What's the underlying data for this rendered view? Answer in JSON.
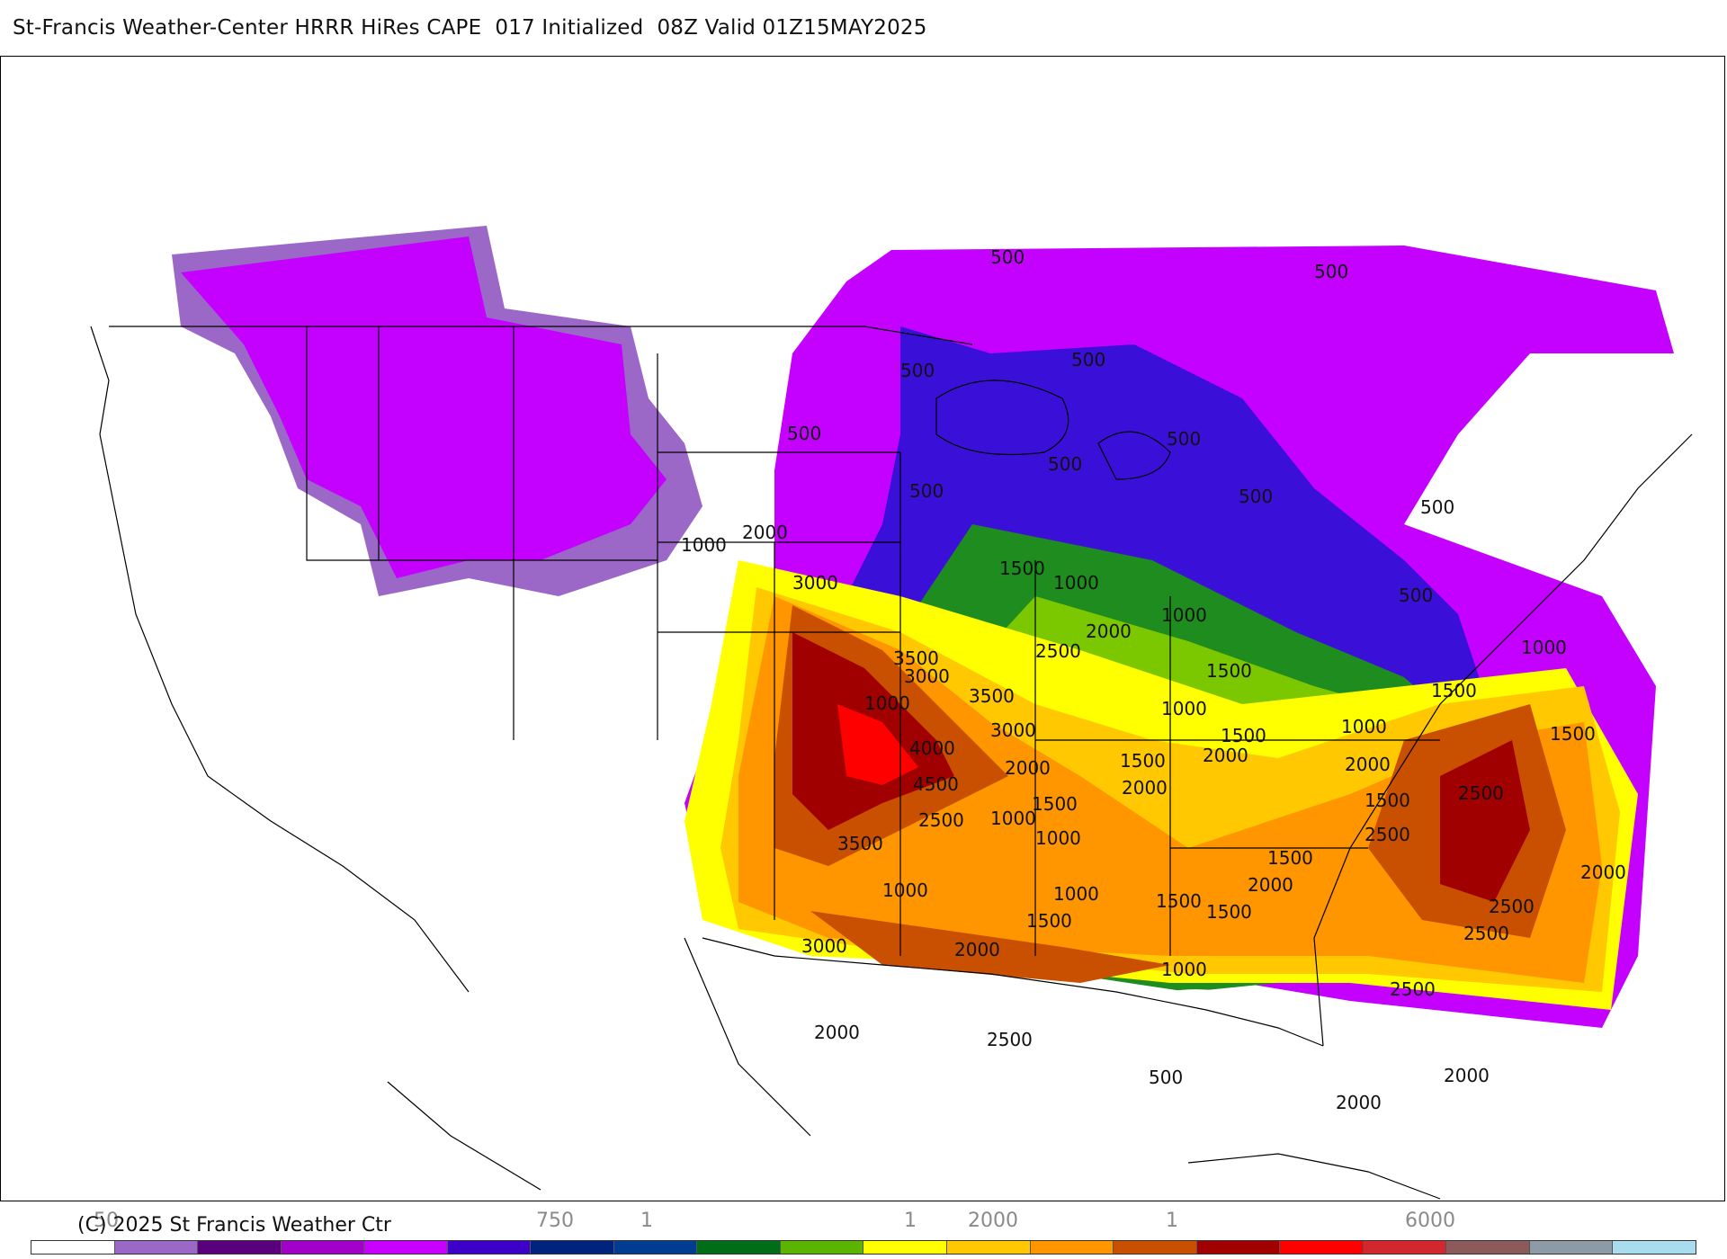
{
  "header": {
    "title": "St-Francis Weather-Center HRRR HiRes CAPE  017 Initialized  08Z Valid 01Z15MAY2025"
  },
  "footer": {
    "copyright": "(C) 2025 St Francis Weather Ctr"
  },
  "legend": {
    "tick_labels": [
      "50",
      "750",
      "1",
      "1",
      "2000",
      "1",
      "6000"
    ],
    "colors": [
      "#ffffff",
      "#9b68c8",
      "#5a007d",
      "#a000c8",
      "#c800ff",
      "#3c00c8",
      "#00237d",
      "#003c91",
      "#006e19",
      "#5ab400",
      "#ffff00",
      "#ffc800",
      "#ff9600",
      "#c85000",
      "#a00000",
      "#ff0000",
      "#d2282d",
      "#8c5a5a",
      "#8c9ba5",
      "#aadcf0"
    ]
  },
  "map": {
    "region": "CONUS",
    "colors": {
      "light_purple": "#9b68c8",
      "magenta": "#c400ff",
      "blue": "#3a10d8",
      "green": "#1e8c1e",
      "light_green": "#7cc800",
      "yellow": "#ffff00",
      "gold": "#ffc800",
      "orange": "#ff9600",
      "rust": "#c85000",
      "dark_red": "#a00000",
      "red": "#ff0000"
    },
    "contour_labels": [
      "500",
      "500",
      "500",
      "500",
      "500",
      "500",
      "500",
      "500",
      "500",
      "500",
      "500",
      "500",
      "1000",
      "1000",
      "1000",
      "1000",
      "1000",
      "1000",
      "1000",
      "1000",
      "1000",
      "1000",
      "1000",
      "1000",
      "1500",
      "1500",
      "1500",
      "1500",
      "1500",
      "1500",
      "1500",
      "1500",
      "1500",
      "1500",
      "1500",
      "1500",
      "2000",
      "2000",
      "2000",
      "2000",
      "2000",
      "2000",
      "2000",
      "2000",
      "2000",
      "2000",
      "2000",
      "2000",
      "2500",
      "2500",
      "2500",
      "2500",
      "2500",
      "2500",
      "2500",
      "2500",
      "3000",
      "3000",
      "3000",
      "3000",
      "3500",
      "3500",
      "3500",
      "4000",
      "4500"
    ]
  }
}
